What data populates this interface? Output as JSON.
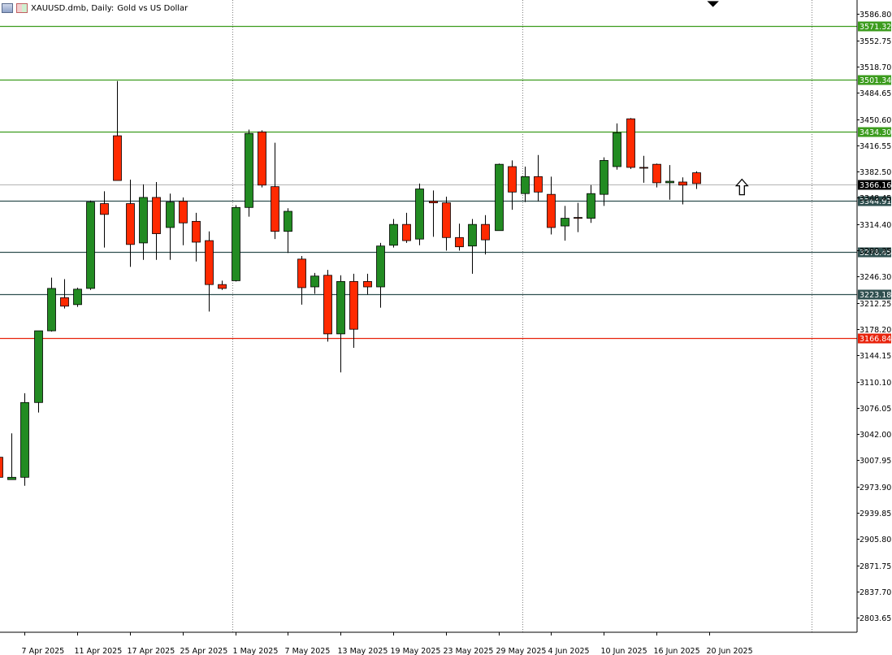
{
  "header": {
    "symbol": "XAUUSD.dmb, Daily:",
    "description": "Gold vs US Dollar",
    "icons": [
      "chart-window-icon",
      "one-click-trading-icon"
    ]
  },
  "colors": {
    "bull": "#228B22",
    "bear": "#FF2A00",
    "candle_outline": "#000000",
    "resistance_line": "#3C9C1E",
    "support_line": "#2F4F4F",
    "key_support_line": "#E8230C",
    "current_price_bg": "#000000",
    "period_separator": "#7f7f7f"
  },
  "chart_data": {
    "type": "candlestick",
    "title": "XAUUSD.dmb, Daily: Gold vs US Dollar",
    "ylim": [
      2785.0,
      3603.0
    ],
    "y_ticks": [
      "3586.80",
      "3552.75",
      "3518.70",
      "3484.65",
      "3450.60",
      "3416.55",
      "3382.50",
      "3348.45",
      "3314.40",
      "3280.35",
      "3246.30",
      "3212.25",
      "3178.20",
      "3144.15",
      "3110.10",
      "3076.05",
      "3042.00",
      "3007.95",
      "2973.90",
      "2939.85",
      "2905.80",
      "2871.75",
      "2837.70",
      "2803.65"
    ],
    "x_labels": [
      {
        "index": 2,
        "label": "7 Apr 2025"
      },
      {
        "index": 6,
        "label": "11 Apr 2025"
      },
      {
        "index": 10,
        "label": "17 Apr 2025"
      },
      {
        "index": 14,
        "label": "25 Apr 2025"
      },
      {
        "index": 18,
        "label": "1 May 2025"
      },
      {
        "index": 22,
        "label": "7 May 2025"
      },
      {
        "index": 26,
        "label": "13 May 2025"
      },
      {
        "index": 30,
        "label": "19 May 2025"
      },
      {
        "index": 34,
        "label": "23 May 2025"
      },
      {
        "index": 38,
        "label": "29 May 2025"
      },
      {
        "index": 42,
        "label": "4 Jun 2025"
      },
      {
        "index": 46,
        "label": "10 Jun 2025"
      },
      {
        "index": 50,
        "label": "16 Jun 2025"
      },
      {
        "index": 54,
        "label": "20 Jun 2025"
      }
    ],
    "period_separators": [
      17.8,
      39.8,
      61.8
    ],
    "horizontal_levels": [
      {
        "price": 3571.32,
        "label": "3571.32",
        "kind": "resistance"
      },
      {
        "price": 3501.34,
        "label": "3501.34",
        "kind": "resistance"
      },
      {
        "price": 3434.3,
        "label": "3434.30",
        "kind": "resistance"
      },
      {
        "price": 3344.91,
        "label": "3344.91",
        "kind": "support"
      },
      {
        "price": 3278.45,
        "label": "3278.45",
        "kind": "support"
      },
      {
        "price": 3223.18,
        "label": "3223.18",
        "kind": "support"
      },
      {
        "price": 3166.84,
        "label": "3166.84",
        "kind": "key_support"
      }
    ],
    "current_price": {
      "price": 3366.16,
      "label": "3366.16"
    },
    "arrow_marker": {
      "index": 56.5,
      "price": 3362.0,
      "direction": "up"
    },
    "arrow_marker_top": {
      "index": 54.3,
      "price": 3601.0,
      "direction": "down"
    },
    "candles": [
      {
        "o": 3012,
        "h": 3028,
        "l": 2986,
        "c": 2986
      },
      {
        "o": 2983,
        "h": 3043,
        "l": 2983,
        "c": 2986
      },
      {
        "o": 2986,
        "h": 3095,
        "l": 2975,
        "c": 3083
      },
      {
        "o": 3083,
        "h": 3175,
        "l": 3070,
        "c": 3176
      },
      {
        "o": 3176,
        "h": 3245,
        "l": 3175,
        "c": 3231
      },
      {
        "o": 3219,
        "h": 3243,
        "l": 3205,
        "c": 3208
      },
      {
        "o": 3210,
        "h": 3232,
        "l": 3207,
        "c": 3230
      },
      {
        "o": 3231,
        "h": 3345,
        "l": 3229,
        "c": 3343
      },
      {
        "o": 3341,
        "h": 3357,
        "l": 3284,
        "c": 3327
      },
      {
        "o": 3429,
        "h": 3500,
        "l": 3371,
        "c": 3371
      },
      {
        "o": 3341,
        "h": 3372,
        "l": 3259,
        "c": 3288
      },
      {
        "o": 3290,
        "h": 3366,
        "l": 3268,
        "c": 3349
      },
      {
        "o": 3349,
        "h": 3369,
        "l": 3268,
        "c": 3302
      },
      {
        "o": 3310,
        "h": 3354,
        "l": 3268,
        "c": 3343
      },
      {
        "o": 3344,
        "h": 3349,
        "l": 3287,
        "c": 3316
      },
      {
        "o": 3318,
        "h": 3329,
        "l": 3266,
        "c": 3291
      },
      {
        "o": 3293,
        "h": 3305,
        "l": 3201,
        "c": 3236
      },
      {
        "o": 3236,
        "h": 3241,
        "l": 3229,
        "c": 3231
      },
      {
        "o": 3241,
        "h": 3339,
        "l": 3240,
        "c": 3336
      },
      {
        "o": 3336,
        "h": 3437,
        "l": 3324,
        "c": 3432
      },
      {
        "o": 3434,
        "h": 3436,
        "l": 3362,
        "c": 3365
      },
      {
        "o": 3363,
        "h": 3420,
        "l": 3295,
        "c": 3305
      },
      {
        "o": 3305,
        "h": 3335,
        "l": 3277,
        "c": 3331
      },
      {
        "o": 3269,
        "h": 3273,
        "l": 3210,
        "c": 3232
      },
      {
        "o": 3233,
        "h": 3251,
        "l": 3224,
        "c": 3247
      },
      {
        "o": 3248,
        "h": 3255,
        "l": 3162,
        "c": 3172
      },
      {
        "o": 3172,
        "h": 3248,
        "l": 3122,
        "c": 3240
      },
      {
        "o": 3240,
        "h": 3250,
        "l": 3154,
        "c": 3178
      },
      {
        "o": 3240,
        "h": 3250,
        "l": 3223,
        "c": 3233
      },
      {
        "o": 3233,
        "h": 3290,
        "l": 3206,
        "c": 3286
      },
      {
        "o": 3287,
        "h": 3321,
        "l": 3284,
        "c": 3314
      },
      {
        "o": 3314,
        "h": 3329,
        "l": 3290,
        "c": 3293
      },
      {
        "o": 3295,
        "h": 3367,
        "l": 3287,
        "c": 3360
      },
      {
        "o": 3344,
        "h": 3358,
        "l": 3298,
        "c": 3342
      },
      {
        "o": 3342,
        "h": 3350,
        "l": 3280,
        "c": 3297
      },
      {
        "o": 3297,
        "h": 3315,
        "l": 3280,
        "c": 3285
      },
      {
        "o": 3286,
        "h": 3321,
        "l": 3250,
        "c": 3314
      },
      {
        "o": 3314,
        "h": 3326,
        "l": 3275,
        "c": 3294
      },
      {
        "o": 3306,
        "h": 3393,
        "l": 3306,
        "c": 3392
      },
      {
        "o": 3389,
        "h": 3397,
        "l": 3333,
        "c": 3356
      },
      {
        "o": 3354,
        "h": 3389,
        "l": 3343,
        "c": 3376
      },
      {
        "o": 3376,
        "h": 3404,
        "l": 3344,
        "c": 3356
      },
      {
        "o": 3353,
        "h": 3376,
        "l": 3301,
        "c": 3310
      },
      {
        "o": 3312,
        "h": 3338,
        "l": 3293,
        "c": 3322
      },
      {
        "o": 3323,
        "h": 3342,
        "l": 3304,
        "c": 3322
      },
      {
        "o": 3322,
        "h": 3365,
        "l": 3316,
        "c": 3354
      },
      {
        "o": 3353,
        "h": 3401,
        "l": 3338,
        "c": 3397
      },
      {
        "o": 3389,
        "h": 3445,
        "l": 3385,
        "c": 3433
      },
      {
        "o": 3451,
        "h": 3452,
        "l": 3386,
        "c": 3388
      },
      {
        "o": 3388,
        "h": 3403,
        "l": 3368,
        "c": 3387
      },
      {
        "o": 3392,
        "h": 3393,
        "l": 3362,
        "c": 3368
      },
      {
        "o": 3368,
        "h": 3391,
        "l": 3346,
        "c": 3370
      },
      {
        "o": 3369,
        "h": 3375,
        "l": 3340,
        "c": 3365
      },
      {
        "o": 3381,
        "h": 3383,
        "l": 3360,
        "c": 3367
      }
    ]
  }
}
